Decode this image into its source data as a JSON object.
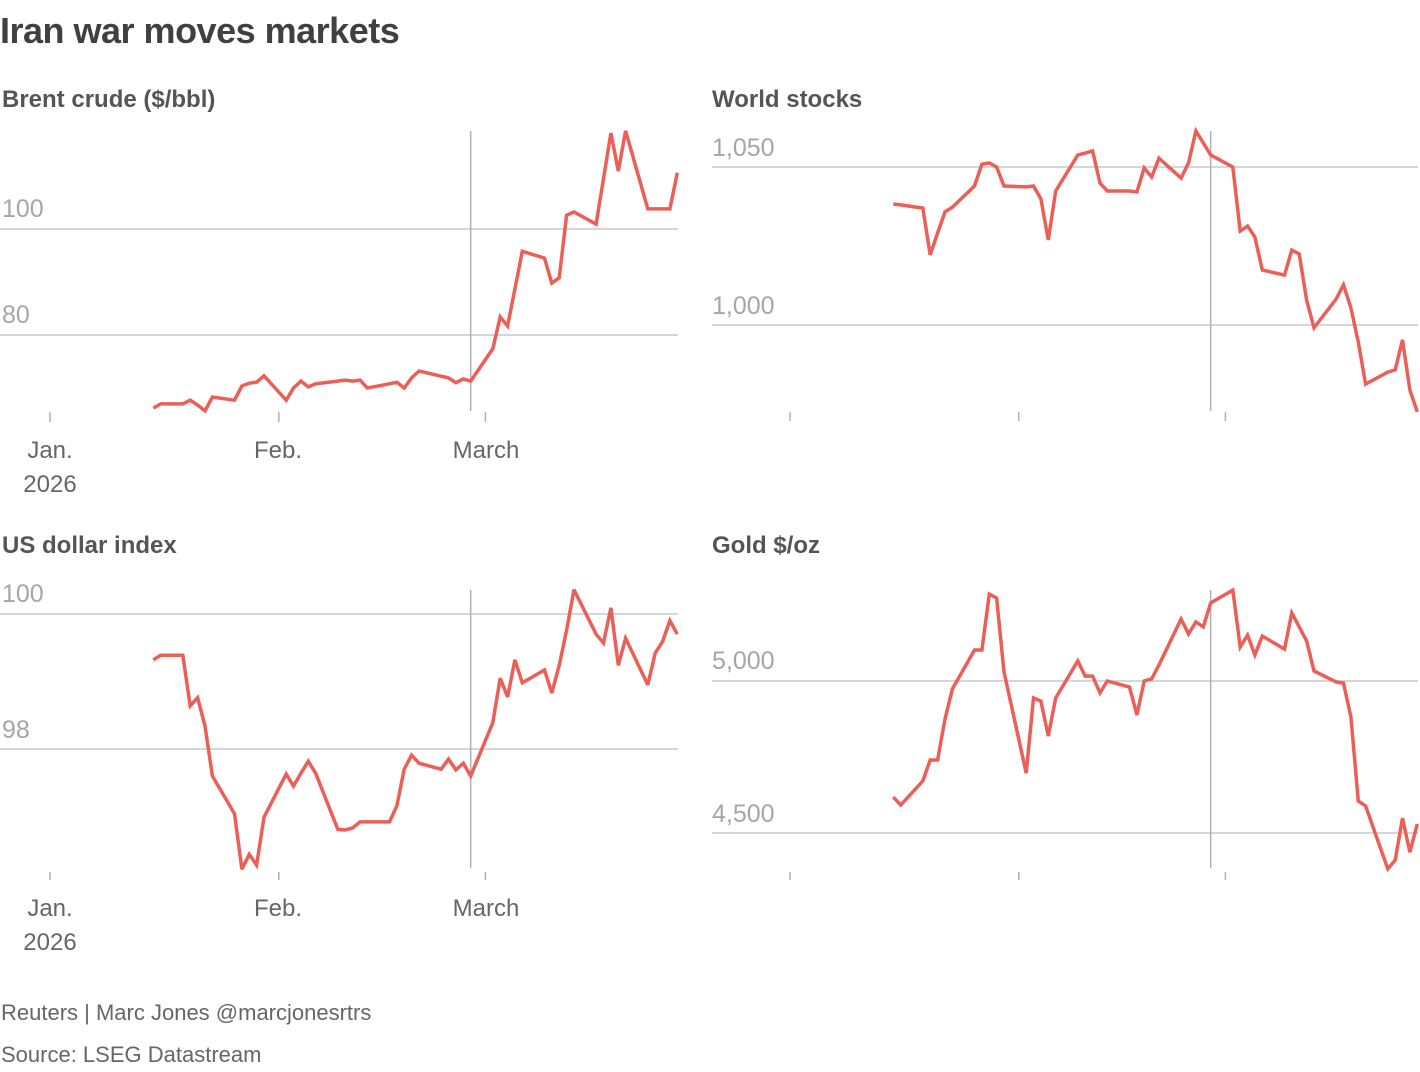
{
  "title": "Iran war moves markets",
  "footer": {
    "credit": "Reuters | Marc Jones @marcjonesrtrs",
    "source": "Source: LSEG Datastream"
  },
  "line_color": "#eb5f57",
  "grid_color": "#c8c8c8",
  "chart_data": [
    {
      "id": "brent",
      "type": "line",
      "title": "Brent crude ($/bbl)",
      "yticks": [
        "100",
        "80"
      ],
      "ytick_values": [
        100,
        80
      ],
      "xticks": [
        "Jan.",
        "Feb.",
        "March"
      ],
      "xtick_year": "2026",
      "reference_date": "2026-02-27",
      "grid": "horizontal",
      "points": [
        [
          "2026-01-15",
          66.2
        ],
        [
          "2026-01-16",
          67.0
        ],
        [
          "2026-01-19",
          67.0
        ],
        [
          "2026-01-20",
          67.7
        ],
        [
          "2026-01-21",
          66.8
        ],
        [
          "2026-01-22",
          65.7
        ],
        [
          "2026-01-23",
          68.3
        ],
        [
          "2026-01-26",
          67.7
        ],
        [
          "2026-01-27",
          70.4
        ],
        [
          "2026-01-28",
          70.9
        ],
        [
          "2026-01-29",
          71.1
        ],
        [
          "2026-01-30",
          72.3
        ],
        [
          "2026-02-02",
          67.7
        ],
        [
          "2026-02-03",
          70.0
        ],
        [
          "2026-02-04",
          71.3
        ],
        [
          "2026-02-05",
          70.2
        ],
        [
          "2026-02-06",
          70.8
        ],
        [
          "2026-02-09",
          71.3
        ],
        [
          "2026-02-10",
          71.5
        ],
        [
          "2026-02-11",
          71.3
        ],
        [
          "2026-02-12",
          71.5
        ],
        [
          "2026-02-13",
          70.0
        ],
        [
          "2026-02-16",
          70.8
        ],
        [
          "2026-02-17",
          71.1
        ],
        [
          "2026-02-18",
          70.0
        ],
        [
          "2026-02-19",
          71.9
        ],
        [
          "2026-02-20",
          73.2
        ],
        [
          "2026-02-24",
          71.9
        ],
        [
          "2026-02-25",
          71.0
        ],
        [
          "2026-02-26",
          71.7
        ],
        [
          "2026-02-27",
          71.3
        ],
        [
          "2026-03-02",
          77.4
        ],
        [
          "2026-03-03",
          83.4
        ],
        [
          "2026-03-04",
          81.7
        ],
        [
          "2026-03-06",
          95.8
        ],
        [
          "2026-03-09",
          94.5
        ],
        [
          "2026-03-10",
          89.8
        ],
        [
          "2026-03-11",
          90.8
        ],
        [
          "2026-03-12",
          102.6
        ],
        [
          "2026-03-13",
          103.2
        ],
        [
          "2026-03-16",
          100.9
        ],
        [
          "2026-03-18",
          118.1
        ],
        [
          "2026-03-19",
          110.9
        ],
        [
          "2026-03-20",
          118.5
        ],
        [
          "2026-03-23",
          103.8
        ],
        [
          "2026-03-26",
          103.8
        ],
        [
          "2026-03-27",
          110.6
        ]
      ]
    },
    {
      "id": "stocks",
      "type": "line",
      "title": "World stocks",
      "yticks": [
        "1,050",
        "1,000"
      ],
      "ytick_values": [
        1050,
        1000
      ],
      "reference_date": "2026-02-27",
      "grid": "horizontal",
      "points": [
        [
          "2026-01-15",
          1038.3
        ],
        [
          "2026-01-16",
          1038.0
        ],
        [
          "2026-01-19",
          1037.0
        ],
        [
          "2026-01-20",
          1022.2
        ],
        [
          "2026-01-21",
          1029.1
        ],
        [
          "2026-01-22",
          1035.8
        ],
        [
          "2026-01-23",
          1037.3
        ],
        [
          "2026-01-26",
          1044.0
        ],
        [
          "2026-01-27",
          1050.9
        ],
        [
          "2026-01-28",
          1051.3
        ],
        [
          "2026-01-29",
          1050.0
        ],
        [
          "2026-01-30",
          1044.0
        ],
        [
          "2026-02-02",
          1043.7
        ],
        [
          "2026-02-03",
          1044.0
        ],
        [
          "2026-02-04",
          1039.9
        ],
        [
          "2026-02-05",
          1026.9
        ],
        [
          "2026-02-06",
          1042.4
        ],
        [
          "2026-02-09",
          1053.8
        ],
        [
          "2026-02-10",
          1054.4
        ],
        [
          "2026-02-11",
          1055.1
        ],
        [
          "2026-02-12",
          1044.9
        ],
        [
          "2026-02-13",
          1042.4
        ],
        [
          "2026-02-16",
          1042.4
        ],
        [
          "2026-02-17",
          1042.1
        ],
        [
          "2026-02-18",
          1049.7
        ],
        [
          "2026-02-19",
          1046.8
        ],
        [
          "2026-02-20",
          1052.8
        ],
        [
          "2026-02-23",
          1046.5
        ],
        [
          "2026-02-24",
          1051.3
        ],
        [
          "2026-02-25",
          1061.4
        ],
        [
          "2026-02-26",
          1057.6
        ],
        [
          "2026-02-27",
          1053.8
        ],
        [
          "2026-03-02",
          1050.0
        ],
        [
          "2026-03-03",
          1029.7
        ],
        [
          "2026-03-04",
          1031.3
        ],
        [
          "2026-03-05",
          1027.8
        ],
        [
          "2026-03-06",
          1017.4
        ],
        [
          "2026-03-09",
          1015.8
        ],
        [
          "2026-03-10",
          1023.7
        ],
        [
          "2026-03-11",
          1022.5
        ],
        [
          "2026-03-12",
          1007.9
        ],
        [
          "2026-03-13",
          999.1
        ],
        [
          "2026-03-16",
          1008.2
        ],
        [
          "2026-03-17",
          1012.7
        ],
        [
          "2026-03-18",
          1005.4
        ],
        [
          "2026-03-19",
          994.6
        ],
        [
          "2026-03-20",
          981.3
        ],
        [
          "2026-03-23",
          985.1
        ],
        [
          "2026-03-24",
          985.8
        ],
        [
          "2026-03-25",
          995.3
        ],
        [
          "2026-03-26",
          979.4
        ],
        [
          "2026-03-27",
          972.5
        ]
      ]
    },
    {
      "id": "dollar",
      "type": "line",
      "title": "US dollar index",
      "yticks": [
        "100",
        "98"
      ],
      "ytick_values": [
        100,
        98
      ],
      "xticks": [
        "Jan.",
        "Feb.",
        "March"
      ],
      "xtick_year": "2026",
      "reference_date": "2026-02-27",
      "grid": "horizontal",
      "points": [
        [
          "2026-01-15",
          99.32
        ],
        [
          "2026-01-16",
          99.39
        ],
        [
          "2026-01-19",
          99.39
        ],
        [
          "2026-01-20",
          98.64
        ],
        [
          "2026-01-21",
          98.76
        ],
        [
          "2026-01-22",
          98.34
        ],
        [
          "2026-01-23",
          97.6
        ],
        [
          "2026-01-26",
          97.04
        ],
        [
          "2026-01-27",
          96.22
        ],
        [
          "2026-01-28",
          96.44
        ],
        [
          "2026-01-29",
          96.28
        ],
        [
          "2026-01-30",
          96.99
        ],
        [
          "2026-02-02",
          97.63
        ],
        [
          "2026-02-03",
          97.45
        ],
        [
          "2026-02-04",
          97.64
        ],
        [
          "2026-02-05",
          97.82
        ],
        [
          "2026-02-06",
          97.64
        ],
        [
          "2026-02-09",
          96.81
        ],
        [
          "2026-02-10",
          96.8
        ],
        [
          "2026-02-11",
          96.83
        ],
        [
          "2026-02-12",
          96.92
        ],
        [
          "2026-02-13",
          96.92
        ],
        [
          "2026-02-16",
          96.92
        ],
        [
          "2026-02-17",
          97.16
        ],
        [
          "2026-02-18",
          97.7
        ],
        [
          "2026-02-19",
          97.91
        ],
        [
          "2026-02-20",
          97.79
        ],
        [
          "2026-02-23",
          97.7
        ],
        [
          "2026-02-24",
          97.85
        ],
        [
          "2026-02-25",
          97.69
        ],
        [
          "2026-02-26",
          97.79
        ],
        [
          "2026-02-27",
          97.6
        ],
        [
          "2026-03-02",
          98.39
        ],
        [
          "2026-03-03",
          99.05
        ],
        [
          "2026-03-04",
          98.77
        ],
        [
          "2026-03-05",
          99.32
        ],
        [
          "2026-03-06",
          98.98
        ],
        [
          "2026-03-09",
          99.17
        ],
        [
          "2026-03-10",
          98.83
        ],
        [
          "2026-03-11",
          99.24
        ],
        [
          "2026-03-12",
          99.76
        ],
        [
          "2026-03-13",
          100.36
        ],
        [
          "2026-03-16",
          99.7
        ],
        [
          "2026-03-17",
          99.57
        ],
        [
          "2026-03-18",
          100.09
        ],
        [
          "2026-03-19",
          99.24
        ],
        [
          "2026-03-20",
          99.64
        ],
        [
          "2026-03-23",
          98.95
        ],
        [
          "2026-03-24",
          99.42
        ],
        [
          "2026-03-25",
          99.59
        ],
        [
          "2026-03-26",
          99.9
        ],
        [
          "2026-03-27",
          99.7
        ]
      ]
    },
    {
      "id": "gold",
      "type": "line",
      "title": "Gold $/oz",
      "yticks": [
        "5,000",
        "4,500"
      ],
      "ytick_values": [
        5000,
        4500
      ],
      "reference_date": "2026-02-27",
      "grid": "horizontal",
      "points": [
        [
          "2026-01-15",
          4618
        ],
        [
          "2026-01-16",
          4592
        ],
        [
          "2026-01-19",
          4671
        ],
        [
          "2026-01-20",
          4740
        ],
        [
          "2026-01-21",
          4740
        ],
        [
          "2026-01-22",
          4875
        ],
        [
          "2026-01-23",
          4974
        ],
        [
          "2026-01-26",
          5102
        ],
        [
          "2026-01-27",
          5102
        ],
        [
          "2026-01-28",
          5286
        ],
        [
          "2026-01-29",
          5273
        ],
        [
          "2026-01-30",
          5030
        ],
        [
          "2026-02-02",
          4697
        ],
        [
          "2026-02-03",
          4944
        ],
        [
          "2026-02-04",
          4934
        ],
        [
          "2026-02-05",
          4819
        ],
        [
          "2026-02-06",
          4944
        ],
        [
          "2026-02-09",
          5066
        ],
        [
          "2026-02-10",
          5016
        ],
        [
          "2026-02-11",
          5016
        ],
        [
          "2026-02-12",
          4961
        ],
        [
          "2026-02-13",
          5000
        ],
        [
          "2026-02-16",
          4980
        ],
        [
          "2026-02-17",
          4888
        ],
        [
          "2026-02-18",
          5000
        ],
        [
          "2026-02-19",
          5007
        ],
        [
          "2026-02-20",
          5053
        ],
        [
          "2026-02-23",
          5204
        ],
        [
          "2026-02-24",
          5155
        ],
        [
          "2026-02-25",
          5194
        ],
        [
          "2026-02-26",
          5178
        ],
        [
          "2026-02-27",
          5257
        ],
        [
          "2026-03-02",
          5299
        ],
        [
          "2026-03-03",
          5112
        ],
        [
          "2026-03-04",
          5151
        ],
        [
          "2026-03-05",
          5086
        ],
        [
          "2026-03-06",
          5148
        ],
        [
          "2026-03-09",
          5105
        ],
        [
          "2026-03-10",
          5224
        ],
        [
          "2026-03-11",
          5178
        ],
        [
          "2026-03-12",
          5132
        ],
        [
          "2026-03-13",
          5033
        ],
        [
          "2026-03-16",
          4997
        ],
        [
          "2026-03-17",
          4993
        ],
        [
          "2026-03-18",
          4882
        ],
        [
          "2026-03-19",
          4605
        ],
        [
          "2026-03-20",
          4589
        ],
        [
          "2026-03-23",
          4382
        ],
        [
          "2026-03-24",
          4411
        ],
        [
          "2026-03-25",
          4549
        ],
        [
          "2026-03-26",
          4437
        ],
        [
          "2026-03-27",
          4530
        ]
      ]
    }
  ]
}
